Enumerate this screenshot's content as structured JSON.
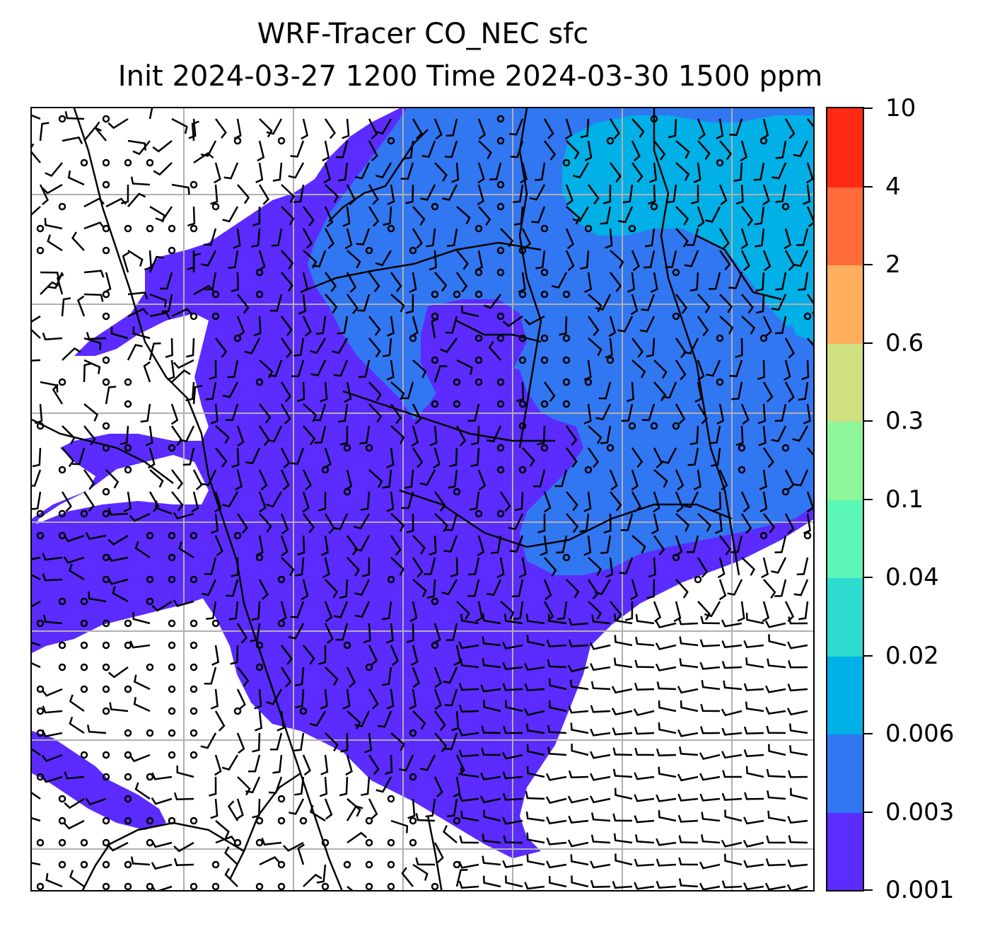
{
  "title": {
    "line1": "WRF-Tracer CO_NEC sfc",
    "line2": "Init 2024-03-27 1200 Time 2024-03-30 1500 ppm"
  },
  "colorbar": {
    "levels": [
      "0.001",
      "0.003",
      "0.006",
      "0.02",
      "0.04",
      "0.1",
      "0.3",
      "0.6",
      "2",
      "4",
      "10"
    ],
    "colors": [
      "#5b2bff",
      "#3177f2",
      "#00b0e6",
      "#2edccf",
      "#5cf7b8",
      "#8ff59a",
      "#cfe07f",
      "#ffae5e",
      "#ff6b3a",
      "#ff2a12"
    ]
  },
  "map": {
    "background": "#ffffff",
    "gridlines": "on",
    "wind_barbs": "on",
    "coastlines_and_borders": "on"
  }
}
